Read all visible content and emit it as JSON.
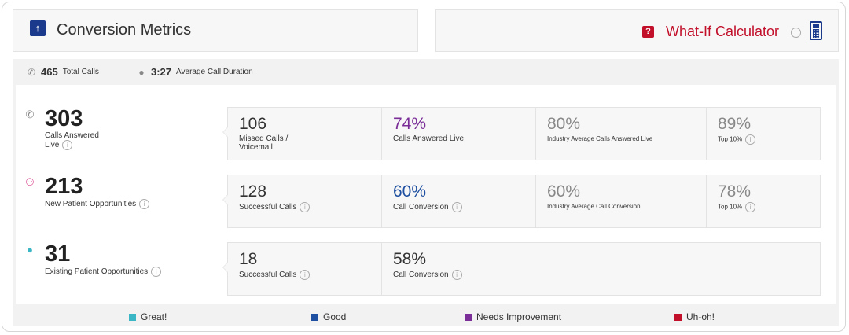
{
  "header": {
    "title": "Conversion Metrics",
    "calculator_label": "What-If Calculator",
    "info_glyph": "i"
  },
  "summary": {
    "total_calls_value": "465",
    "total_calls_label": "Total Calls",
    "avg_duration_value": "3:27",
    "avg_duration_label": "Average Call Duration"
  },
  "rows": [
    {
      "value": "303",
      "label": "Calls Answered Live",
      "icon": "phone-icon",
      "icon_color": "#888888",
      "cells": [
        {
          "value": "106",
          "label": "Missed Calls / Voicemail",
          "color": "#333333"
        },
        {
          "value": "74%",
          "label": "Calls Answered Live",
          "color": "#7b2e98"
        },
        {
          "value": "80%",
          "label": "Industry Average Calls Answered Live",
          "color": "#888888"
        },
        {
          "value": "89%",
          "label": "Top 10%",
          "color": "#888888"
        }
      ]
    },
    {
      "value": "213",
      "label": "New Patient Opportunities",
      "icon": "add-user-icon",
      "icon_color": "#d62f83",
      "cells": [
        {
          "value": "128",
          "label": "Successful Calls",
          "color": "#333333"
        },
        {
          "value": "60%",
          "label": "Call Conversion",
          "color": "#1f4fa0"
        },
        {
          "value": "60%",
          "label": "Industry Average Call Conversion",
          "color": "#888888"
        },
        {
          "value": "78%",
          "label": "Top 10%",
          "color": "#888888"
        }
      ]
    },
    {
      "value": "31",
      "label": "Existing Patient Opportunities",
      "icon": "user-icon",
      "icon_color": "#3bb6c4",
      "cells": [
        {
          "value": "18",
          "label": "Successful Calls",
          "color": "#333333"
        },
        {
          "value": "58%",
          "label": "Call Conversion",
          "color": "#333333"
        }
      ]
    }
  ],
  "legend": [
    {
      "label": "Great!",
      "color": "#3bb6c4"
    },
    {
      "label": "Good",
      "color": "#1f4fa0"
    },
    {
      "label": "Needs Improvement",
      "color": "#7b2e98"
    },
    {
      "label": "Uh-oh!",
      "color": "#c2102b"
    }
  ]
}
